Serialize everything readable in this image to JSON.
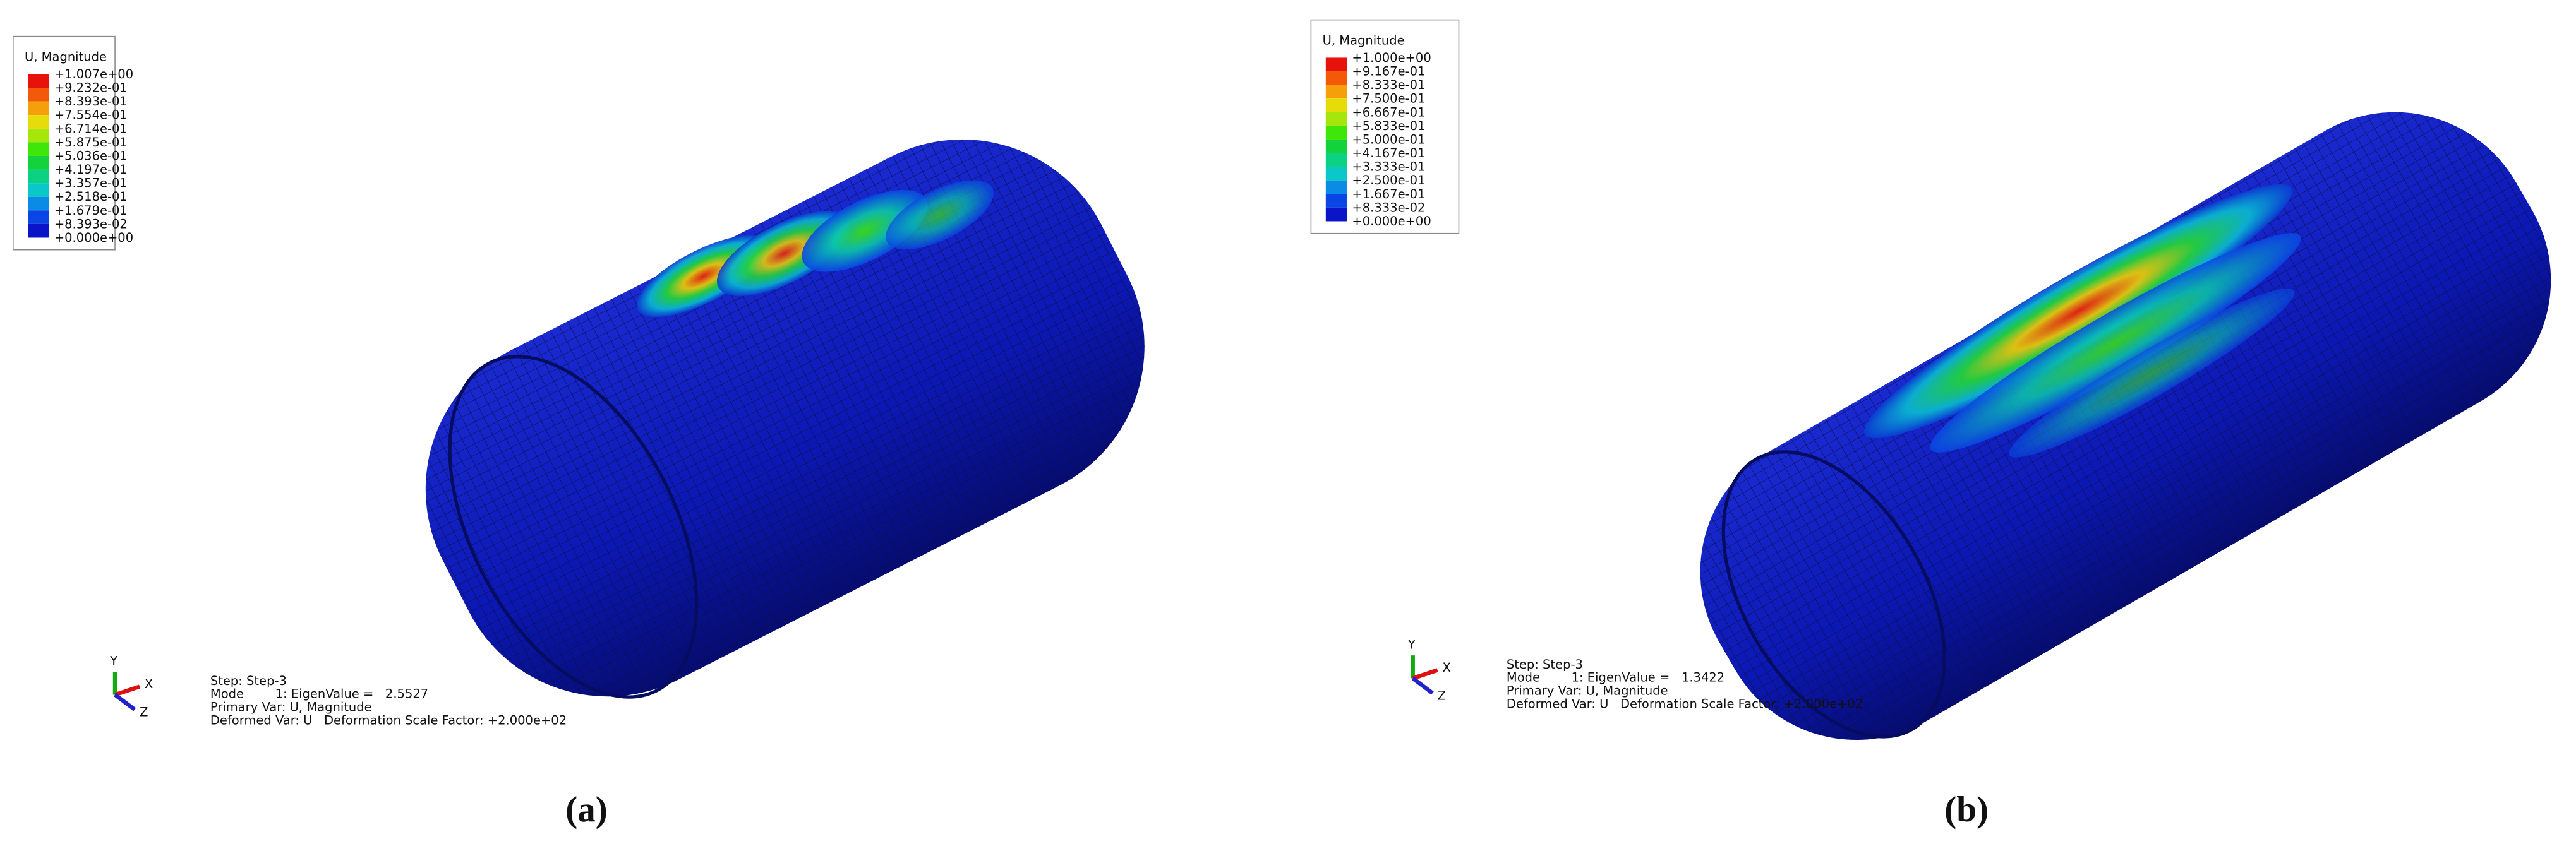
{
  "panels": [
    {
      "legend": {
        "title": "U, Magnitude",
        "labels": [
          "+1.007e+00",
          "+9.232e-01",
          "+8.393e-01",
          "+7.554e-01",
          "+6.714e-01",
          "+5.875e-01",
          "+5.036e-01",
          "+4.197e-01",
          "+3.357e-01",
          "+2.518e-01",
          "+1.679e-01",
          "+8.393e-02",
          "+0.000e+00"
        ],
        "colors": [
          "#e8120c",
          "#f25a0a",
          "#f5a00a",
          "#e6dc0a",
          "#a6e60a",
          "#3ee60a",
          "#14d23c",
          "#0ad282",
          "#0ac8c8",
          "#0a8ce6",
          "#0a46e6",
          "#0a14c8"
        ]
      },
      "axes": [
        "Y",
        "X",
        "Z"
      ],
      "info": [
        "Step: Step-3",
        "Mode        1: EigenValue =   2.5527",
        "Primary Var: U, Magnitude",
        "Deformed Var: U   Deformation Scale Factor: +2.000e+02"
      ],
      "caption": "(a)"
    },
    {
      "legend": {
        "title": "U, Magnitude",
        "labels": [
          "+1.000e+00",
          "+9.167e-01",
          "+8.333e-01",
          "+7.500e-01",
          "+6.667e-01",
          "+5.833e-01",
          "+5.000e-01",
          "+4.167e-01",
          "+3.333e-01",
          "+2.500e-01",
          "+1.667e-01",
          "+8.333e-02",
          "+0.000e+00"
        ],
        "colors": [
          "#e8120c",
          "#f25a0a",
          "#f5a00a",
          "#e6dc0a",
          "#a6e60a",
          "#3ee60a",
          "#14d23c",
          "#0ad282",
          "#0ac8c8",
          "#0a8ce6",
          "#0a46e6",
          "#0a14c8"
        ]
      },
      "axes": [
        "Y",
        "X",
        "Z"
      ],
      "info": [
        "Step: Step-3",
        "Mode        1: EigenValue =   1.3422",
        "Primary Var: U, Magnitude",
        "Deformed Var: U   Deformation Scale Factor: +2.000e+02"
      ],
      "caption": "(b)"
    }
  ]
}
